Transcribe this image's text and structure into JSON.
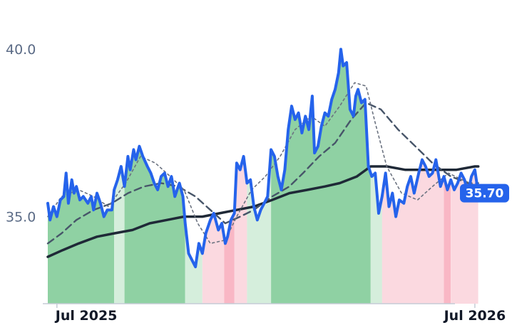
{
  "chart_data": {
    "type": "line",
    "x_start": "2025-06-23",
    "x_end": "2026-07-21",
    "x_ticks": [
      {
        "label": "Jul 2025",
        "date": "2025-07-01"
      },
      {
        "label": "Jul 2026",
        "date": "2026-07-01"
      }
    ],
    "y_ticks": [
      {
        "label": "35.0",
        "value": 35.0
      },
      {
        "label": "40.0",
        "value": 40.0
      }
    ],
    "ylim": [
      32.4,
      41.3
    ],
    "grid": false,
    "legend": "none",
    "last_value_label": "35.70",
    "last_value": 35.7,
    "series": [
      {
        "role": "price",
        "color": "#2563eb",
        "points": [
          [
            "2025-06-23",
            35.4
          ],
          [
            "2025-06-25",
            34.9
          ],
          [
            "2025-06-28",
            35.3
          ],
          [
            "2025-07-01",
            35.0
          ],
          [
            "2025-07-04",
            35.5
          ],
          [
            "2025-07-07",
            35.6
          ],
          [
            "2025-07-09",
            36.3
          ],
          [
            "2025-07-11",
            35.4
          ],
          [
            "2025-07-14",
            36.1
          ],
          [
            "2025-07-16",
            35.7
          ],
          [
            "2025-07-18",
            35.9
          ],
          [
            "2025-07-21",
            35.5
          ],
          [
            "2025-07-24",
            35.6
          ],
          [
            "2025-07-28",
            35.4
          ],
          [
            "2025-07-31",
            35.6
          ],
          [
            "2025-08-02",
            35.2
          ],
          [
            "2025-08-05",
            35.7
          ],
          [
            "2025-08-08",
            35.4
          ],
          [
            "2025-08-11",
            35.0
          ],
          [
            "2025-08-14",
            35.2
          ],
          [
            "2025-08-18",
            35.2
          ],
          [
            "2025-08-20",
            35.8
          ],
          [
            "2025-08-23",
            36.1
          ],
          [
            "2025-08-26",
            36.5
          ],
          [
            "2025-08-29",
            35.9
          ],
          [
            "2025-09-01",
            36.8
          ],
          [
            "2025-09-03",
            36.4
          ],
          [
            "2025-09-06",
            37.0
          ],
          [
            "2025-09-08",
            36.7
          ],
          [
            "2025-09-11",
            37.1
          ],
          [
            "2025-09-14",
            36.8
          ],
          [
            "2025-09-18",
            36.5
          ],
          [
            "2025-09-21",
            36.3
          ],
          [
            "2025-09-24",
            36.0
          ],
          [
            "2025-09-27",
            35.8
          ],
          [
            "2025-09-30",
            36.2
          ],
          [
            "2025-10-03",
            36.3
          ],
          [
            "2025-10-06",
            35.9
          ],
          [
            "2025-10-09",
            36.2
          ],
          [
            "2025-10-12",
            35.6
          ],
          [
            "2025-10-16",
            36.0
          ],
          [
            "2025-10-19",
            35.6
          ],
          [
            "2025-10-21",
            34.8
          ],
          [
            "2025-10-24",
            33.9
          ],
          [
            "2025-10-27",
            33.7
          ],
          [
            "2025-10-30",
            33.5
          ],
          [
            "2025-11-02",
            34.2
          ],
          [
            "2025-11-05",
            33.9
          ],
          [
            "2025-11-08",
            34.5
          ],
          [
            "2025-11-12",
            34.9
          ],
          [
            "2025-11-15",
            35.1
          ],
          [
            "2025-11-19",
            34.6
          ],
          [
            "2025-11-22",
            34.8
          ],
          [
            "2025-11-25",
            34.2
          ],
          [
            "2025-11-27",
            34.4
          ],
          [
            "2025-11-30",
            34.9
          ],
          [
            "2025-12-03",
            35.1
          ],
          [
            "2025-12-05",
            36.6
          ],
          [
            "2025-12-08",
            36.4
          ],
          [
            "2025-12-11",
            36.8
          ],
          [
            "2025-12-14",
            36.0
          ],
          [
            "2025-12-17",
            36.1
          ],
          [
            "2025-12-20",
            35.3
          ],
          [
            "2025-12-23",
            34.9
          ],
          [
            "2025-12-26",
            35.2
          ],
          [
            "2025-12-29",
            35.4
          ],
          [
            "2026-01-01",
            35.6
          ],
          [
            "2026-01-04",
            37.0
          ],
          [
            "2026-01-07",
            36.8
          ],
          [
            "2026-01-10",
            36.2
          ],
          [
            "2026-01-13",
            35.8
          ],
          [
            "2026-01-16",
            36.4
          ],
          [
            "2026-01-19",
            37.6
          ],
          [
            "2026-01-22",
            38.3
          ],
          [
            "2026-01-25",
            37.9
          ],
          [
            "2026-01-28",
            38.1
          ],
          [
            "2026-01-31",
            37.5
          ],
          [
            "2026-02-03",
            38.0
          ],
          [
            "2026-02-06",
            37.6
          ],
          [
            "2026-02-09",
            38.6
          ],
          [
            "2026-02-11",
            36.9
          ],
          [
            "2026-02-14",
            37.1
          ],
          [
            "2026-02-17",
            37.7
          ],
          [
            "2026-02-20",
            38.1
          ],
          [
            "2026-02-23",
            38.0
          ],
          [
            "2026-02-26",
            38.5
          ],
          [
            "2026-03-01",
            38.8
          ],
          [
            "2026-03-04",
            39.3
          ],
          [
            "2026-03-06",
            40.0
          ],
          [
            "2026-03-08",
            39.5
          ],
          [
            "2026-03-11",
            39.6
          ],
          [
            "2026-03-14",
            38.2
          ],
          [
            "2026-03-17",
            38.0
          ],
          [
            "2026-03-19",
            38.6
          ],
          [
            "2026-03-21",
            38.8
          ],
          [
            "2026-03-24",
            38.4
          ],
          [
            "2026-03-27",
            38.5
          ],
          [
            "2026-03-30",
            36.5
          ],
          [
            "2026-04-02",
            36.2
          ],
          [
            "2026-04-05",
            36.3
          ],
          [
            "2026-04-08",
            35.1
          ],
          [
            "2026-04-11",
            35.6
          ],
          [
            "2026-04-14",
            36.3
          ],
          [
            "2026-04-17",
            35.3
          ],
          [
            "2026-04-20",
            35.7
          ],
          [
            "2026-04-23",
            35.0
          ],
          [
            "2026-04-26",
            35.5
          ],
          [
            "2026-04-30",
            35.4
          ],
          [
            "2026-05-03",
            35.9
          ],
          [
            "2026-05-06",
            36.2
          ],
          [
            "2026-05-09",
            35.7
          ],
          [
            "2026-05-13",
            36.3
          ],
          [
            "2026-05-16",
            36.7
          ],
          [
            "2026-05-19",
            36.5
          ],
          [
            "2026-05-22",
            36.2
          ],
          [
            "2026-05-25",
            36.3
          ],
          [
            "2026-05-28",
            36.7
          ],
          [
            "2026-06-01",
            35.9
          ],
          [
            "2026-06-04",
            36.2
          ],
          [
            "2026-06-07",
            35.8
          ],
          [
            "2026-06-10",
            36.1
          ],
          [
            "2026-06-13",
            35.8
          ],
          [
            "2026-06-16",
            36.0
          ],
          [
            "2026-06-19",
            36.3
          ],
          [
            "2026-06-22",
            36.1
          ],
          [
            "2026-06-25",
            35.7
          ],
          [
            "2026-06-28",
            36.2
          ],
          [
            "2026-07-01",
            36.4
          ],
          [
            "2026-07-04",
            35.7
          ]
        ]
      },
      {
        "role": "long moving average",
        "color": "#1f2937",
        "points": [
          [
            "2025-06-23",
            33.8
          ],
          [
            "2025-07-06",
            34.0
          ],
          [
            "2025-07-20",
            34.2
          ],
          [
            "2025-08-05",
            34.4
          ],
          [
            "2025-08-20",
            34.5
          ],
          [
            "2025-09-05",
            34.6
          ],
          [
            "2025-09-20",
            34.8
          ],
          [
            "2025-10-05",
            34.9
          ],
          [
            "2025-10-20",
            35.0
          ],
          [
            "2025-11-05",
            35.0
          ],
          [
            "2025-11-20",
            35.1
          ],
          [
            "2025-12-05",
            35.2
          ],
          [
            "2025-12-20",
            35.3
          ],
          [
            "2026-01-05",
            35.5
          ],
          [
            "2026-01-20",
            35.7
          ],
          [
            "2026-02-05",
            35.8
          ],
          [
            "2026-02-20",
            35.9
          ],
          [
            "2026-03-05",
            36.0
          ],
          [
            "2026-03-20",
            36.2
          ],
          [
            "2026-04-01",
            36.5
          ],
          [
            "2026-04-15",
            36.5
          ],
          [
            "2026-05-01",
            36.4
          ],
          [
            "2026-05-15",
            36.4
          ],
          [
            "2026-06-01",
            36.4
          ],
          [
            "2026-06-15",
            36.4
          ],
          [
            "2026-07-01",
            36.5
          ],
          [
            "2026-07-04",
            36.5
          ]
        ]
      },
      {
        "role": "medium moving average",
        "color": "#475569",
        "dash": "10 6",
        "points": [
          [
            "2025-06-23",
            34.2
          ],
          [
            "2025-07-05",
            34.5
          ],
          [
            "2025-07-18",
            34.9
          ],
          [
            "2025-08-02",
            35.2
          ],
          [
            "2025-08-18",
            35.4
          ],
          [
            "2025-09-01",
            35.7
          ],
          [
            "2025-09-15",
            35.9
          ],
          [
            "2025-09-30",
            36.0
          ],
          [
            "2025-10-15",
            35.9
          ],
          [
            "2025-10-30",
            35.6
          ],
          [
            "2025-11-12",
            35.2
          ],
          [
            "2025-11-25",
            34.8
          ],
          [
            "2025-12-08",
            35.0
          ],
          [
            "2025-12-20",
            35.2
          ],
          [
            "2026-01-05",
            35.6
          ],
          [
            "2026-01-20",
            35.9
          ],
          [
            "2026-02-01",
            36.3
          ],
          [
            "2026-02-15",
            36.8
          ],
          [
            "2026-03-01",
            37.2
          ],
          [
            "2026-03-15",
            37.9
          ],
          [
            "2026-03-28",
            38.4
          ],
          [
            "2026-04-10",
            38.2
          ],
          [
            "2026-04-25",
            37.6
          ],
          [
            "2026-05-10",
            37.1
          ],
          [
            "2026-05-25",
            36.6
          ],
          [
            "2026-06-10",
            36.2
          ],
          [
            "2026-06-25",
            36.0
          ],
          [
            "2026-07-04",
            36.0
          ]
        ]
      },
      {
        "role": "short moving average",
        "color": "#6b7280",
        "dash": "3 4",
        "points": [
          [
            "2025-06-23",
            35.0
          ],
          [
            "2025-07-05",
            35.6
          ],
          [
            "2025-07-20",
            35.8
          ],
          [
            "2025-08-02",
            35.6
          ],
          [
            "2025-08-15",
            35.3
          ],
          [
            "2025-08-30",
            36.0
          ],
          [
            "2025-09-12",
            36.8
          ],
          [
            "2025-09-25",
            36.6
          ],
          [
            "2025-10-08",
            36.2
          ],
          [
            "2025-10-20",
            35.8
          ],
          [
            "2025-11-01",
            34.8
          ],
          [
            "2025-11-12",
            34.2
          ],
          [
            "2025-11-25",
            34.3
          ],
          [
            "2025-12-05",
            35.0
          ],
          [
            "2025-12-18",
            35.8
          ],
          [
            "2025-12-30",
            36.2
          ],
          [
            "2026-01-12",
            36.8
          ],
          [
            "2026-01-25",
            37.6
          ],
          [
            "2026-02-08",
            38.0
          ],
          [
            "2026-02-20",
            37.7
          ],
          [
            "2026-03-05",
            38.3
          ],
          [
            "2026-03-18",
            39.0
          ],
          [
            "2026-03-28",
            38.9
          ],
          [
            "2026-04-05",
            37.8
          ],
          [
            "2026-04-15",
            36.5
          ],
          [
            "2026-04-28",
            35.7
          ],
          [
            "2026-05-12",
            35.5
          ],
          [
            "2026-05-25",
            35.9
          ],
          [
            "2026-06-08",
            36.3
          ],
          [
            "2026-06-20",
            36.1
          ],
          [
            "2026-07-04",
            35.9
          ]
        ]
      }
    ],
    "regime_bands": [
      {
        "start": "2025-06-23",
        "end": "2025-08-20",
        "color": "#8fd1a3"
      },
      {
        "start": "2025-08-20",
        "end": "2025-08-29",
        "color": "#d5eedc"
      },
      {
        "start": "2025-08-29",
        "end": "2025-10-21",
        "color": "#8fd1a3"
      },
      {
        "start": "2025-10-21",
        "end": "2025-11-05",
        "color": "#d5eedc"
      },
      {
        "start": "2025-11-05",
        "end": "2025-11-24",
        "color": "#fbd9e0"
      },
      {
        "start": "2025-11-24",
        "end": "2025-12-03",
        "color": "#f9b7c5"
      },
      {
        "start": "2025-12-03",
        "end": "2025-12-14",
        "color": "#fbd9e0"
      },
      {
        "start": "2025-12-14",
        "end": "2026-01-04",
        "color": "#d5eedc"
      },
      {
        "start": "2026-01-04",
        "end": "2026-04-01",
        "color": "#8fd1a3"
      },
      {
        "start": "2026-04-01",
        "end": "2026-04-11",
        "color": "#d5eedc"
      },
      {
        "start": "2026-04-11",
        "end": "2026-06-04",
        "color": "#fbd9e0"
      },
      {
        "start": "2026-06-04",
        "end": "2026-06-10",
        "color": "#f9b7c5"
      },
      {
        "start": "2026-06-10",
        "end": "2026-07-04",
        "color": "#fbd9e0"
      }
    ]
  }
}
